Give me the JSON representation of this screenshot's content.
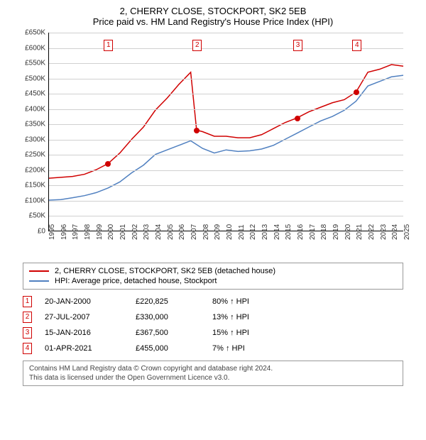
{
  "chart": {
    "type": "line",
    "title_line1": "2, CHERRY CLOSE, STOCKPORT, SK2 5EB",
    "title_line2": "Price paid vs. HM Land Registry's House Price Index (HPI)",
    "title_fontsize": 13,
    "background_color": "#ffffff",
    "grid_color": "#d0d0d0",
    "axis_color": "#000000",
    "ylim": [
      0,
      650
    ],
    "ytick_step": 50,
    "ytick_prefix": "£",
    "ytick_suffix": "K",
    "xlim": [
      1995,
      2025
    ],
    "xticks": [
      1995,
      1996,
      1997,
      1998,
      1999,
      2000,
      2001,
      2002,
      2003,
      2004,
      2005,
      2006,
      2007,
      2008,
      2009,
      2010,
      2011,
      2012,
      2013,
      2014,
      2015,
      2016,
      2017,
      2018,
      2019,
      2020,
      2021,
      2022,
      2023,
      2024,
      2025
    ],
    "series": [
      {
        "name": "price_paid",
        "color": "#d00000",
        "line_width": 1.5,
        "values": [
          [
            1995,
            172
          ],
          [
            1996,
            175
          ],
          [
            1997,
            178
          ],
          [
            1998,
            185
          ],
          [
            1999,
            200
          ],
          [
            2000,
            220
          ],
          [
            2001,
            255
          ],
          [
            2002,
            300
          ],
          [
            2003,
            340
          ],
          [
            2004,
            395
          ],
          [
            2005,
            435
          ],
          [
            2006,
            480
          ],
          [
            2007,
            520
          ],
          [
            2007.5,
            330
          ],
          [
            2008,
            325
          ],
          [
            2009,
            310
          ],
          [
            2010,
            310
          ],
          [
            2011,
            305
          ],
          [
            2012,
            305
          ],
          [
            2013,
            315
          ],
          [
            2014,
            335
          ],
          [
            2015,
            355
          ],
          [
            2016,
            370
          ],
          [
            2017,
            390
          ],
          [
            2018,
            405
          ],
          [
            2019,
            420
          ],
          [
            2020,
            430
          ],
          [
            2021,
            455
          ],
          [
            2022,
            520
          ],
          [
            2023,
            530
          ],
          [
            2024,
            545
          ],
          [
            2025,
            540
          ]
        ]
      },
      {
        "name": "hpi",
        "color": "#5080c0",
        "line_width": 1.5,
        "values": [
          [
            1995,
            100
          ],
          [
            1996,
            102
          ],
          [
            1997,
            108
          ],
          [
            1998,
            115
          ],
          [
            1999,
            125
          ],
          [
            2000,
            140
          ],
          [
            2001,
            160
          ],
          [
            2002,
            190
          ],
          [
            2003,
            215
          ],
          [
            2004,
            250
          ],
          [
            2005,
            265
          ],
          [
            2006,
            280
          ],
          [
            2007,
            295
          ],
          [
            2008,
            270
          ],
          [
            2009,
            255
          ],
          [
            2010,
            265
          ],
          [
            2011,
            260
          ],
          [
            2012,
            262
          ],
          [
            2013,
            268
          ],
          [
            2014,
            280
          ],
          [
            2015,
            300
          ],
          [
            2016,
            320
          ],
          [
            2017,
            340
          ],
          [
            2018,
            360
          ],
          [
            2019,
            375
          ],
          [
            2020,
            395
          ],
          [
            2021,
            425
          ],
          [
            2022,
            475
          ],
          [
            2023,
            490
          ],
          [
            2024,
            505
          ],
          [
            2025,
            510
          ]
        ]
      }
    ],
    "markers": [
      {
        "n": "1",
        "year": 2000,
        "y_top": 10,
        "point_year": 2000,
        "point_value": 220
      },
      {
        "n": "2",
        "year": 2007.5,
        "y_top": 10,
        "point_year": 2007.5,
        "point_value": 330
      },
      {
        "n": "3",
        "year": 2016,
        "y_top": 10,
        "point_year": 2016,
        "point_value": 370
      },
      {
        "n": "4",
        "year": 2021,
        "y_top": 10,
        "point_year": 2021,
        "point_value": 455
      }
    ]
  },
  "legend": {
    "items": [
      {
        "color": "#d00000",
        "label": "2, CHERRY CLOSE, STOCKPORT, SK2 5EB (detached house)"
      },
      {
        "color": "#5080c0",
        "label": "HPI: Average price, detached house, Stockport"
      }
    ]
  },
  "sales": [
    {
      "n": "1",
      "date": "20-JAN-2000",
      "price": "£220,825",
      "pct": "80% ↑ HPI"
    },
    {
      "n": "2",
      "date": "27-JUL-2007",
      "price": "£330,000",
      "pct": "13% ↑ HPI"
    },
    {
      "n": "3",
      "date": "15-JAN-2016",
      "price": "£367,500",
      "pct": "15% ↑ HPI"
    },
    {
      "n": "4",
      "date": "01-APR-2021",
      "price": "£455,000",
      "pct": "7% ↑ HPI"
    }
  ],
  "footer": {
    "line1": "Contains HM Land Registry data © Crown copyright and database right 2024.",
    "line2": "This data is licensed under the Open Government Licence v3.0."
  }
}
